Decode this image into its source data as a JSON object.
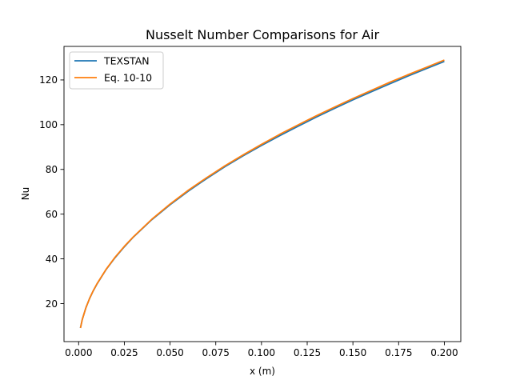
{
  "chart_data": {
    "type": "line",
    "title": "Nusselt Number Comparisons for Air",
    "xlabel": "x (m)",
    "ylabel": "Nu",
    "xlim": [
      -0.008,
      0.209
    ],
    "ylim": [
      3.0,
      135.0
    ],
    "xticks": [
      0.0,
      0.025,
      0.05,
      0.075,
      0.1,
      0.125,
      0.15,
      0.175,
      0.2
    ],
    "xtick_labels": [
      "0.000",
      "0.025",
      "0.050",
      "0.075",
      "0.100",
      "0.125",
      "0.150",
      "0.175",
      "0.200"
    ],
    "yticks": [
      20,
      40,
      60,
      80,
      100,
      120
    ],
    "ytick_labels": [
      "20",
      "40",
      "60",
      "80",
      "100",
      "120"
    ],
    "grid": false,
    "legend_position": "top-left",
    "series": [
      {
        "name": "TEXSTAN",
        "color": "#1f77b4",
        "x": [
          0.001,
          0.002,
          0.004,
          0.006,
          0.008,
          0.01,
          0.015,
          0.02,
          0.025,
          0.03,
          0.04,
          0.05,
          0.06,
          0.07,
          0.08,
          0.09,
          0.1,
          0.11,
          0.12,
          0.13,
          0.14,
          0.15,
          0.16,
          0.17,
          0.18,
          0.19,
          0.2
        ],
        "y": [
          9.1,
          12.9,
          18.2,
          22.3,
          25.7,
          28.7,
          35.2,
          40.6,
          45.4,
          49.8,
          57.5,
          64.2,
          70.3,
          75.9,
          81.2,
          86.1,
          90.7,
          95.1,
          99.3,
          103.4,
          107.3,
          111.1,
          114.7,
          118.2,
          121.7,
          125.0,
          128.3
        ]
      },
      {
        "name": "Eq. 10-10",
        "color": "#ff7f0e",
        "x": [
          0.001,
          0.002,
          0.004,
          0.006,
          0.008,
          0.01,
          0.015,
          0.02,
          0.025,
          0.03,
          0.04,
          0.05,
          0.06,
          0.07,
          0.08,
          0.09,
          0.1,
          0.11,
          0.12,
          0.13,
          0.14,
          0.15,
          0.16,
          0.17,
          0.18,
          0.19,
          0.2
        ],
        "y": [
          9.1,
          12.9,
          18.2,
          22.3,
          25.8,
          28.8,
          35.3,
          40.8,
          45.6,
          49.9,
          57.7,
          64.5,
          70.7,
          76.3,
          81.6,
          86.5,
          91.2,
          95.7,
          99.9,
          104.0,
          107.9,
          111.7,
          115.3,
          118.9,
          122.3,
          125.6,
          128.9
        ]
      }
    ]
  }
}
